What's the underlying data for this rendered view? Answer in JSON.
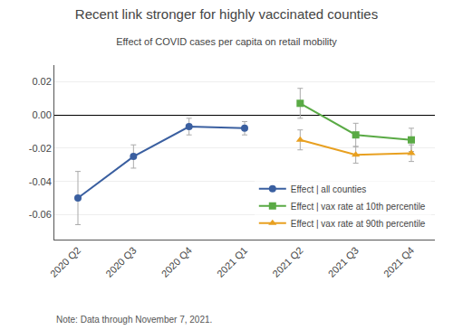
{
  "chart_data": {
    "type": "line",
    "title": "Recent link stronger for highly vaccinated counties",
    "subtitle": "Effect of COVID cases per capita on retail mobility",
    "annotations": [
      "Note: Data through November 7, 2021."
    ],
    "categories": [
      "2020 Q2",
      "2020 Q3",
      "2020 Q4",
      "2021 Q1",
      "2021 Q2",
      "2021 Q3",
      "2021 Q4"
    ],
    "series": [
      {
        "name": "Effect | all counties",
        "color": "#3a5fa0",
        "marker": "circle",
        "values": [
          -0.05,
          -0.025,
          -0.007,
          -0.008,
          null,
          null,
          null
        ],
        "error_low": [
          0.016,
          0.007,
          0.005,
          0.004,
          null,
          null,
          null
        ],
        "error_high": [
          0.016,
          0.007,
          0.005,
          0.004,
          null,
          null,
          null
        ]
      },
      {
        "name": "Effect | vax rate at 10th percentile",
        "color": "#5aaa45",
        "marker": "square",
        "values": [
          null,
          null,
          null,
          null,
          0.007,
          -0.012,
          -0.015
        ],
        "error_low": [
          null,
          null,
          null,
          null,
          0.009,
          0.007,
          0.007
        ],
        "error_high": [
          null,
          null,
          null,
          null,
          0.009,
          0.007,
          0.007
        ]
      },
      {
        "name": "Effect | vax rate at 90th percentile",
        "color": "#e8a020",
        "marker": "triangle-up",
        "values": [
          null,
          null,
          null,
          null,
          -0.015,
          -0.024,
          -0.023
        ],
        "error_low": [
          null,
          null,
          null,
          null,
          0.006,
          0.005,
          0.005
        ],
        "error_high": [
          null,
          null,
          null,
          null,
          0.006,
          0.005,
          0.005
        ]
      }
    ],
    "ylim": [
      -0.075,
      0.03
    ],
    "yticks": [
      {
        "value": -0.06,
        "label": "-0.06"
      },
      {
        "value": -0.04,
        "label": "-0.04"
      },
      {
        "value": -0.02,
        "label": "-0.02"
      },
      {
        "value": 0,
        "label": "0.00"
      },
      {
        "value": 0.02,
        "label": "0.02"
      }
    ],
    "grid": true,
    "legend": "lower right"
  }
}
